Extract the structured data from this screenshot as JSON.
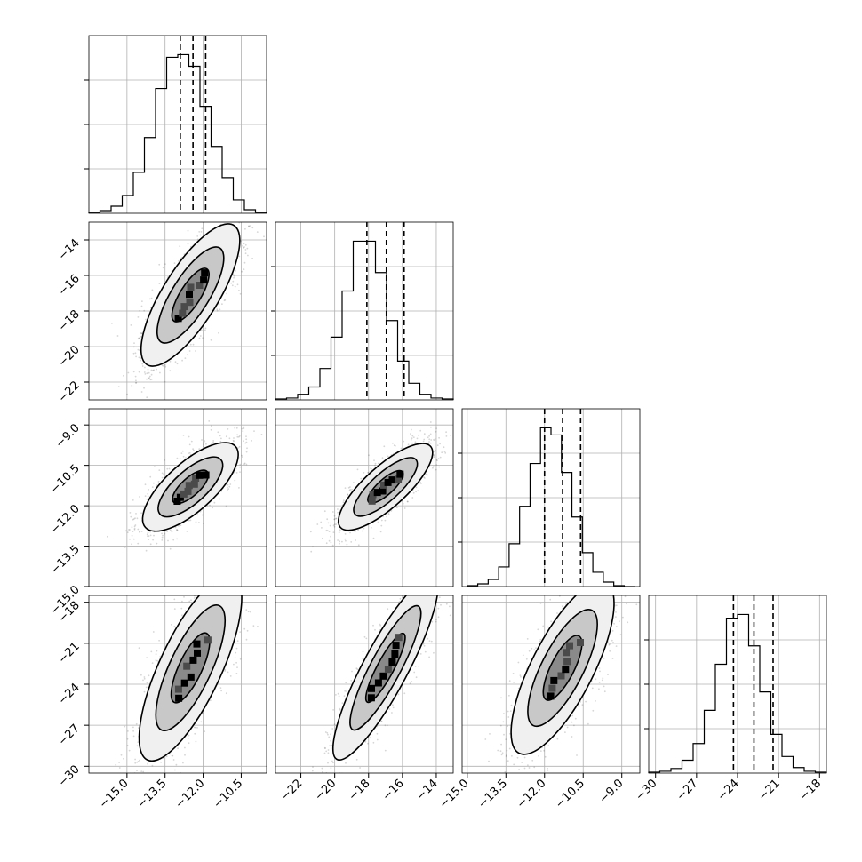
{
  "chart_data": {
    "type": "corner",
    "grid": true,
    "parameters": [
      {
        "hist": [
          1,
          3,
          8,
          20,
          46,
          85,
          140,
          175,
          178,
          165,
          120,
          75,
          40,
          15,
          4,
          1
        ],
        "range": [
          -16.5,
          -9.5
        ],
        "quantiles": [
          -12.9,
          -12.4,
          -11.9
        ]
      },
      {
        "hist": [
          1,
          2,
          6,
          14,
          34,
          68,
          118,
          172,
          172,
          138,
          86,
          42,
          18,
          6,
          2,
          1
        ],
        "range": [
          -23.5,
          -13.0
        ],
        "quantiles": [
          -18.1,
          -16.95,
          -15.9
        ]
      },
      {
        "hist": [
          1,
          3,
          8,
          22,
          48,
          90,
          138,
          178,
          170,
          128,
          78,
          38,
          16,
          5,
          1,
          0
        ],
        "range": [
          -15.0,
          -8.5
        ],
        "quantiles": [
          -12.0,
          -11.3,
          -10.6
        ]
      },
      {
        "hist": [
          1,
          2,
          5,
          14,
          32,
          68,
          118,
          168,
          172,
          138,
          88,
          42,
          18,
          6,
          2,
          1
        ],
        "range": [
          -30.5,
          -17.5
        ],
        "quantiles": [
          -24.3,
          -22.8,
          -21.4
        ]
      }
    ],
    "pairs": [
      {
        "row": 1,
        "col": 0,
        "center": [
          -12.5,
          -17.1
        ],
        "angle": 58,
        "sx": 2.1,
        "sy": 0.32,
        "seed": 11
      },
      {
        "row": 2,
        "col": 0,
        "center": [
          -12.5,
          -11.3
        ],
        "angle": 42,
        "sx": 1.55,
        "sy": 0.28,
        "seed": 23
      },
      {
        "row": 2,
        "col": 1,
        "center": [
          -17.0,
          -11.3
        ],
        "angle": 42,
        "sx": 1.55,
        "sy": 0.24,
        "seed": 37
      },
      {
        "row": 3,
        "col": 0,
        "center": [
          -12.5,
          -22.8
        ],
        "angle": 65,
        "sx": 2.6,
        "sy": 0.36,
        "seed": 41
      },
      {
        "row": 3,
        "col": 1,
        "center": [
          -17.0,
          -22.8
        ],
        "angle": 62,
        "sx": 2.65,
        "sy": 0.26,
        "seed": 53
      },
      {
        "row": 3,
        "col": 2,
        "center": [
          -11.3,
          -22.8
        ],
        "angle": 63,
        "sx": 2.45,
        "sy": 0.36,
        "seed": 67
      }
    ],
    "axes": {
      "x": [
        {
          "range": [
            -16.5,
            -9.5
          ],
          "ticks": [
            -15.0,
            -13.5,
            -12.0,
            -10.5
          ],
          "tick_labels": [
            "−15.0",
            "−13.5",
            "−12.0",
            "−10.5"
          ]
        },
        {
          "range": [
            -23.5,
            -13.0
          ],
          "ticks": [
            -22,
            -20,
            -18,
            -16,
            -14
          ],
          "tick_labels": [
            "−22",
            "−20",
            "−18",
            "−16",
            "−14"
          ]
        },
        {
          "range": [
            -15.2,
            -8.3
          ],
          "ticks": [
            -15.0,
            -13.5,
            -12.0,
            -10.5,
            -9.0
          ],
          "tick_labels": [
            "−15.0",
            "−13.5",
            "−12.0",
            "−10.5",
            "−9.0"
          ]
        },
        {
          "range": [
            -30.5,
            -17.5
          ],
          "ticks": [
            -30,
            -27,
            -24,
            -21,
            -18
          ],
          "tick_labels": [
            "−30",
            "−27",
            "−24",
            "−21",
            "−18"
          ]
        }
      ],
      "y": [
        null,
        {
          "range": [
            -23.0,
            -13.0
          ],
          "ticks": [
            -22,
            -20,
            -18,
            -16,
            -14
          ],
          "tick_labels": [
            "−22",
            "−20",
            "−18",
            "−16",
            "−14"
          ]
        },
        {
          "range": [
            -15.0,
            -8.4
          ],
          "ticks": [
            -15.0,
            -13.5,
            -12.0,
            -10.5,
            -9.0
          ],
          "tick_labels": [
            "−15.0",
            "−13.5",
            "−12.0",
            "−10.5",
            "−9.0"
          ]
        },
        {
          "range": [
            -30.5,
            -17.5
          ],
          "ticks": [
            -30,
            -27,
            -24,
            -21,
            -18
          ],
          "tick_labels": [
            "−30",
            "−27",
            "−24",
            "−21",
            "−18"
          ]
        }
      ]
    },
    "colors": {
      "line": "#000000",
      "grid": "#b0b0b0",
      "points": "#444444",
      "contour_fills": [
        "#f0f0f0",
        "#c8c8c8",
        "#8a8a8a"
      ],
      "density_dark": "#000000"
    }
  }
}
